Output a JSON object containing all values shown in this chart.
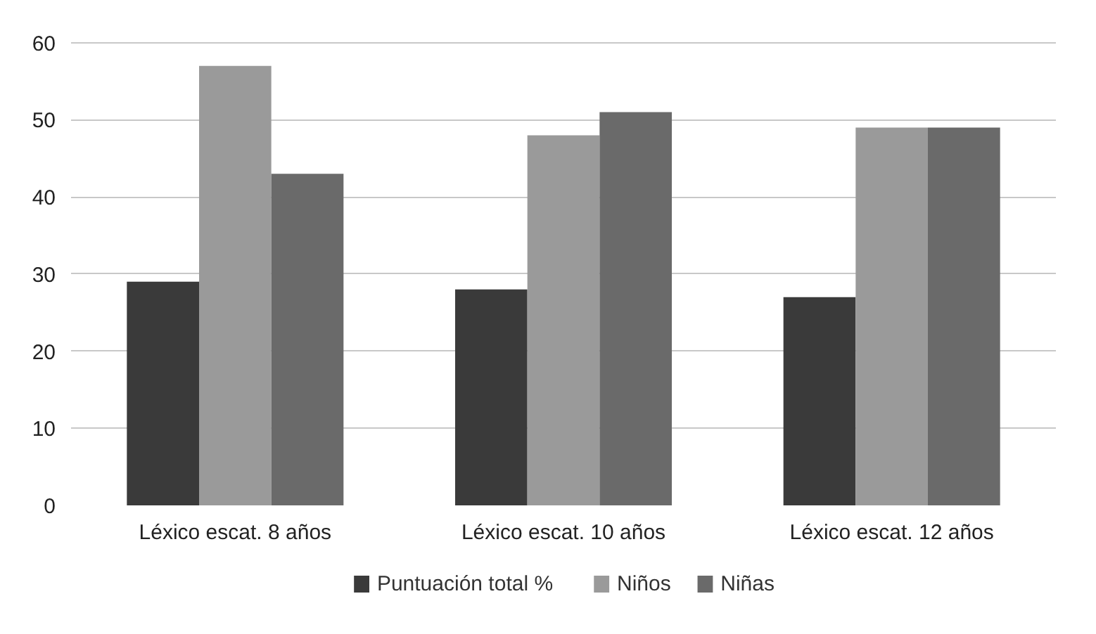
{
  "chart_data": {
    "type": "bar",
    "categories": [
      "Léxico escat. 8 años",
      "Léxico escat. 10 años",
      "Léxico escat. 12 años"
    ],
    "series": [
      {
        "name": "Puntuación total %",
        "color": "#3a3a3a",
        "values": [
          29,
          28,
          27
        ]
      },
      {
        "name": "Niños",
        "color": "#9a9a9a",
        "values": [
          57,
          48,
          49
        ]
      },
      {
        "name": "Niñas",
        "color": "#6a6a6a",
        "values": [
          43,
          51,
          49
        ]
      }
    ],
    "ylim": [
      0,
      60
    ],
    "yticks": [
      0,
      10,
      20,
      30,
      40,
      50,
      60
    ],
    "grid": "y",
    "legend": "bottom"
  }
}
